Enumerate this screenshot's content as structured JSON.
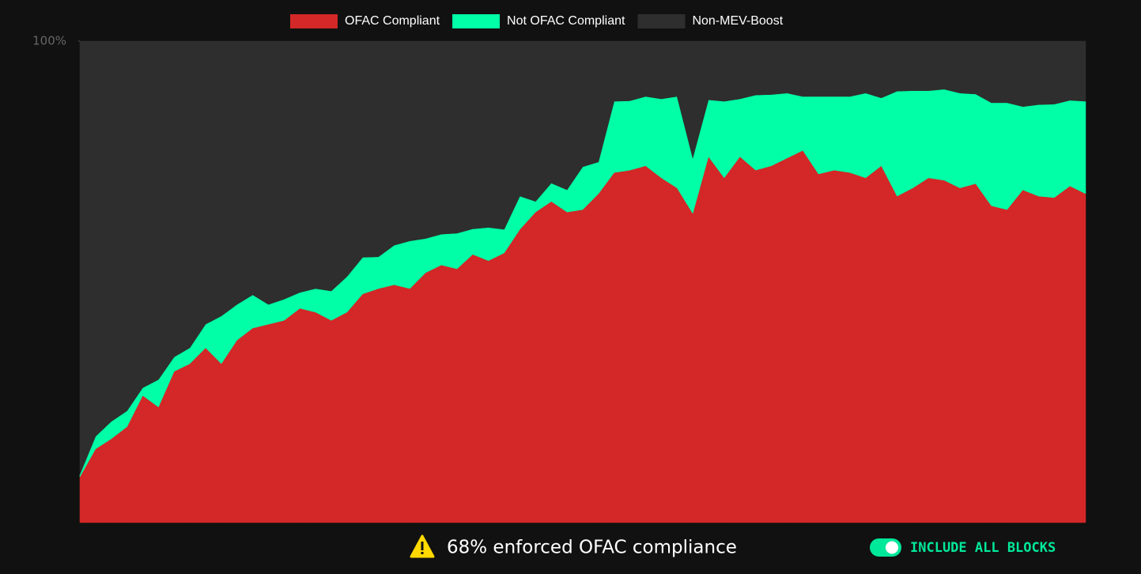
{
  "chart_data": {
    "type": "stacked_area",
    "ylim": [
      0,
      100
    ],
    "yticks": [
      {
        "value": 100,
        "label": "100%"
      }
    ],
    "legend": "top",
    "series": [
      {
        "name": "OFAC Compliant",
        "color": "#d42727",
        "values": [
          9.5,
          15.3,
          17.4,
          19.9,
          26.4,
          24.0,
          31.4,
          33.0,
          36.3,
          33.0,
          37.9,
          40.4,
          41.2,
          42.0,
          44.5,
          43.7,
          42.0,
          43.7,
          47.5,
          48.6,
          49.4,
          48.6,
          51.9,
          53.5,
          52.7,
          55.7,
          54.4,
          56.0,
          60.9,
          64.5,
          66.7,
          64.5,
          65.0,
          68.3,
          72.7,
          73.2,
          74.1,
          71.6,
          69.5,
          64.2,
          76.0,
          71.6,
          76.0,
          73.2,
          74.1,
          75.7,
          77.3,
          72.4,
          73.2,
          72.7,
          71.6,
          74.1,
          67.8,
          69.5,
          71.6,
          71.1,
          69.5,
          70.4,
          65.8,
          65.0,
          69.1,
          67.8,
          67.5,
          69.9,
          68.3
        ]
      },
      {
        "name": "Not OFAC Compliant",
        "color": "#00ffa6",
        "values": [
          0.5,
          2.6,
          3.6,
          3.3,
          1.6,
          5.7,
          3.0,
          3.3,
          4.9,
          9.9,
          7.4,
          6.9,
          4.1,
          4.4,
          3.3,
          4.9,
          6.1,
          7.4,
          7.6,
          6.6,
          8.2,
          9.9,
          7.1,
          6.4,
          7.4,
          5.3,
          6.9,
          4.9,
          6.9,
          2.2,
          3.8,
          4.6,
          8.9,
          6.6,
          14.8,
          14.4,
          14.4,
          16.4,
          19.0,
          11.5,
          11.8,
          15.9,
          12.0,
          15.6,
          14.8,
          13.5,
          11.2,
          16.1,
          15.3,
          15.8,
          17.6,
          14.1,
          21.8,
          20.2,
          18.1,
          18.9,
          19.7,
          18.6,
          21.4,
          22.2,
          17.3,
          19.0,
          19.4,
          17.8,
          19.2
        ]
      },
      {
        "name": "Non-MEV-Boost",
        "color": "#2e2e2e",
        "values": [
          90.0,
          82.1,
          79.0,
          76.8,
          72.0,
          70.3,
          65.6,
          63.7,
          58.8,
          57.1,
          54.7,
          52.7,
          54.7,
          53.6,
          52.2,
          51.4,
          51.9,
          48.9,
          44.9,
          44.8,
          42.4,
          41.5,
          41.0,
          40.1,
          39.9,
          39.0,
          38.7,
          39.1,
          32.2,
          33.3,
          29.5,
          30.9,
          26.1,
          25.1,
          12.5,
          12.4,
          11.5,
          12.0,
          11.5,
          24.3,
          12.2,
          12.5,
          12.0,
          11.2,
          11.1,
          10.8,
          11.5,
          11.5,
          11.5,
          11.5,
          10.8,
          11.8,
          10.4,
          10.3,
          10.3,
          10.0,
          10.8,
          11.0,
          12.8,
          12.8,
          13.6,
          13.2,
          13.1,
          12.3,
          12.5
        ]
      }
    ],
    "annotation": "68% enforced OFAC compliance",
    "toggle_label": "INCLUDE ALL BLOCKS"
  }
}
